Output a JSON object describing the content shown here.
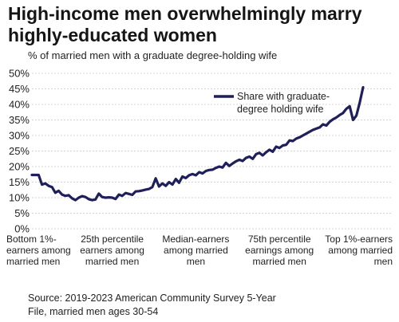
{
  "title": "High-income men overwhelmingly marry highly-educated women",
  "subtitle": "% of married men with a graduate degree-holding wife",
  "source_line1": "Source: 2019-2023 American Community Survey 5-Year",
  "source_line2": "File, married men ages 30-54",
  "colors": {
    "line": "#1f1f5c",
    "grid": "#d4d4d4",
    "text": "#222222"
  },
  "chart_data": {
    "type": "line",
    "title": "High-income men overwhelmingly marry highly-educated women",
    "subtitle": "% of married men with a graduate degree-holding wife",
    "ylim": [
      0,
      50
    ],
    "yticks": [
      "0%",
      "5%",
      "10%",
      "15%",
      "20%",
      "25%",
      "30%",
      "35%",
      "40%",
      "45%",
      "50%"
    ],
    "grid": true,
    "legend_position": "top-right",
    "categories": [
      [
        "Bottom 1%-",
        "earners among",
        "married men"
      ],
      [
        "25th percentile",
        "earners among",
        "married men"
      ],
      [
        "Median-earners",
        "among married",
        "men"
      ],
      [
        "75th percentile",
        "earnings among",
        "married men"
      ],
      [
        "Top 1%-earners",
        "among married",
        "men"
      ]
    ],
    "category_positions": [
      1,
      25,
      50,
      75,
      100
    ],
    "series": [
      {
        "name": "Share with graduate-degree holding wife",
        "legend_lines": [
          "Share with graduate-",
          "degree holding wife"
        ],
        "x": [
          1,
          2,
          3,
          4,
          5,
          6,
          7,
          8,
          9,
          10,
          11,
          12,
          13,
          14,
          15,
          16,
          17,
          18,
          19,
          20,
          21,
          22,
          23,
          24,
          25,
          26,
          27,
          28,
          29,
          30,
          31,
          32,
          33,
          34,
          35,
          36,
          37,
          38,
          39,
          40,
          41,
          42,
          43,
          44,
          45,
          46,
          47,
          48,
          49,
          50,
          51,
          52,
          53,
          54,
          55,
          56,
          57,
          58,
          59,
          60,
          61,
          62,
          63,
          64,
          65,
          66,
          67,
          68,
          69,
          70,
          71,
          72,
          73,
          74,
          75,
          76,
          77,
          78,
          79,
          80,
          81,
          82,
          83,
          84,
          85,
          86,
          87,
          88,
          89,
          90,
          91,
          92,
          93,
          94,
          95,
          96,
          97,
          98,
          99,
          100
        ],
        "values": [
          17.3,
          17.3,
          17.3,
          14.2,
          14.6,
          13.8,
          13.4,
          11.6,
          12.2,
          11.0,
          10.6,
          10.8,
          9.8,
          9.2,
          10.0,
          10.5,
          10.2,
          9.5,
          9.2,
          9.4,
          11.3,
          10.2,
          10.0,
          10.1,
          10.0,
          9.6,
          11.0,
          10.6,
          11.5,
          11.2,
          10.9,
          12.0,
          12.1,
          12.3,
          12.6,
          12.8,
          13.4,
          16.2,
          13.6,
          14.6,
          13.8,
          15.0,
          14.2,
          16.0,
          14.8,
          16.8,
          16.3,
          17.2,
          17.6,
          17.2,
          18.2,
          17.8,
          18.6,
          18.9,
          19.0,
          19.6,
          20.0,
          19.7,
          21.2,
          20.2,
          21.0,
          21.7,
          22.2,
          21.8,
          22.8,
          23.2,
          22.5,
          24.0,
          24.4,
          23.6,
          24.6,
          25.4,
          24.8,
          26.4,
          26.0,
          26.8,
          27.0,
          28.4,
          28.2,
          29.0,
          29.4,
          30.0,
          30.6,
          31.2,
          31.8,
          32.2,
          32.6,
          33.6,
          33.2,
          34.4,
          35.2,
          35.8,
          36.6,
          37.2,
          38.6,
          39.4,
          35.0,
          36.4,
          40.6,
          45.5
        ]
      }
    ]
  }
}
